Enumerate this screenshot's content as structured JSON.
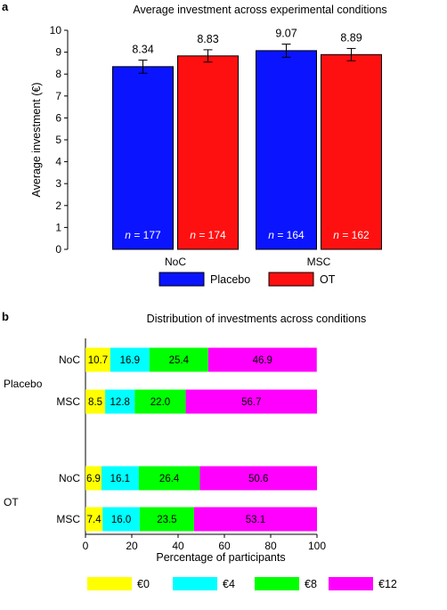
{
  "chart_data": [
    {
      "panel": "a",
      "type": "bar",
      "title": "Average investment across experimental conditions",
      "xlabel": "",
      "ylabel": "Average investment (€)",
      "ylim": [
        0,
        10
      ],
      "yticks": [
        "0",
        "1",
        "2",
        "3",
        "4",
        "5",
        "6",
        "7",
        "8",
        "9",
        "10"
      ],
      "categories": [
        "NoC",
        "MSC"
      ],
      "series": [
        {
          "name": "Placebo",
          "color": "#0a14ff",
          "values": [
            8.34,
            9.07
          ],
          "value_labels": [
            "8.34",
            "9.07"
          ],
          "error": [
            0.3,
            0.3
          ],
          "n_labels": [
            "n = 177",
            "n = 164"
          ]
        },
        {
          "name": "OT",
          "color": "#ff1010",
          "values": [
            8.83,
            8.89
          ],
          "value_labels": [
            "8.83",
            "8.89"
          ],
          "error": [
            0.28,
            0.28
          ],
          "n_labels": [
            "n = 174",
            "n = 162"
          ]
        }
      ],
      "legend_position": "bottom"
    },
    {
      "panel": "b",
      "type": "bar",
      "orientation": "horizontal-stacked",
      "title": "Distribution of investments across conditions",
      "xlabel": "Percentage of participants",
      "xlim": [
        0,
        100
      ],
      "xticks": [
        "0",
        "20",
        "40",
        "60",
        "80",
        "100"
      ],
      "groups": [
        {
          "name": "Placebo",
          "rows": [
            {
              "label": "NoC",
              "values": [
                10.7,
                16.9,
                25.4,
                46.9
              ],
              "value_labels": [
                "10.7",
                "16.9",
                "25.4",
                "46.9"
              ]
            },
            {
              "label": "MSC",
              "values": [
                8.5,
                12.8,
                22.0,
                56.7
              ],
              "value_labels": [
                "8.5",
                "12.8",
                "22.0",
                "56.7"
              ]
            }
          ]
        },
        {
          "name": "OT",
          "rows": [
            {
              "label": "NoC",
              "values": [
                6.9,
                16.1,
                26.4,
                50.6
              ],
              "value_labels": [
                "6.9",
                "16.1",
                "26.4",
                "50.6"
              ]
            },
            {
              "label": "MSC",
              "values": [
                7.4,
                16.0,
                23.5,
                53.1
              ],
              "value_labels": [
                "7.4",
                "16.0",
                "23.5",
                "53.1"
              ]
            }
          ]
        }
      ],
      "series": [
        {
          "name": "€0",
          "color": "#ffff00"
        },
        {
          "name": "€4",
          "color": "#00ffff"
        },
        {
          "name": "€8",
          "color": "#00ff00"
        },
        {
          "name": "€12",
          "color": "#ff00ff"
        }
      ],
      "legend_position": "bottom"
    }
  ]
}
